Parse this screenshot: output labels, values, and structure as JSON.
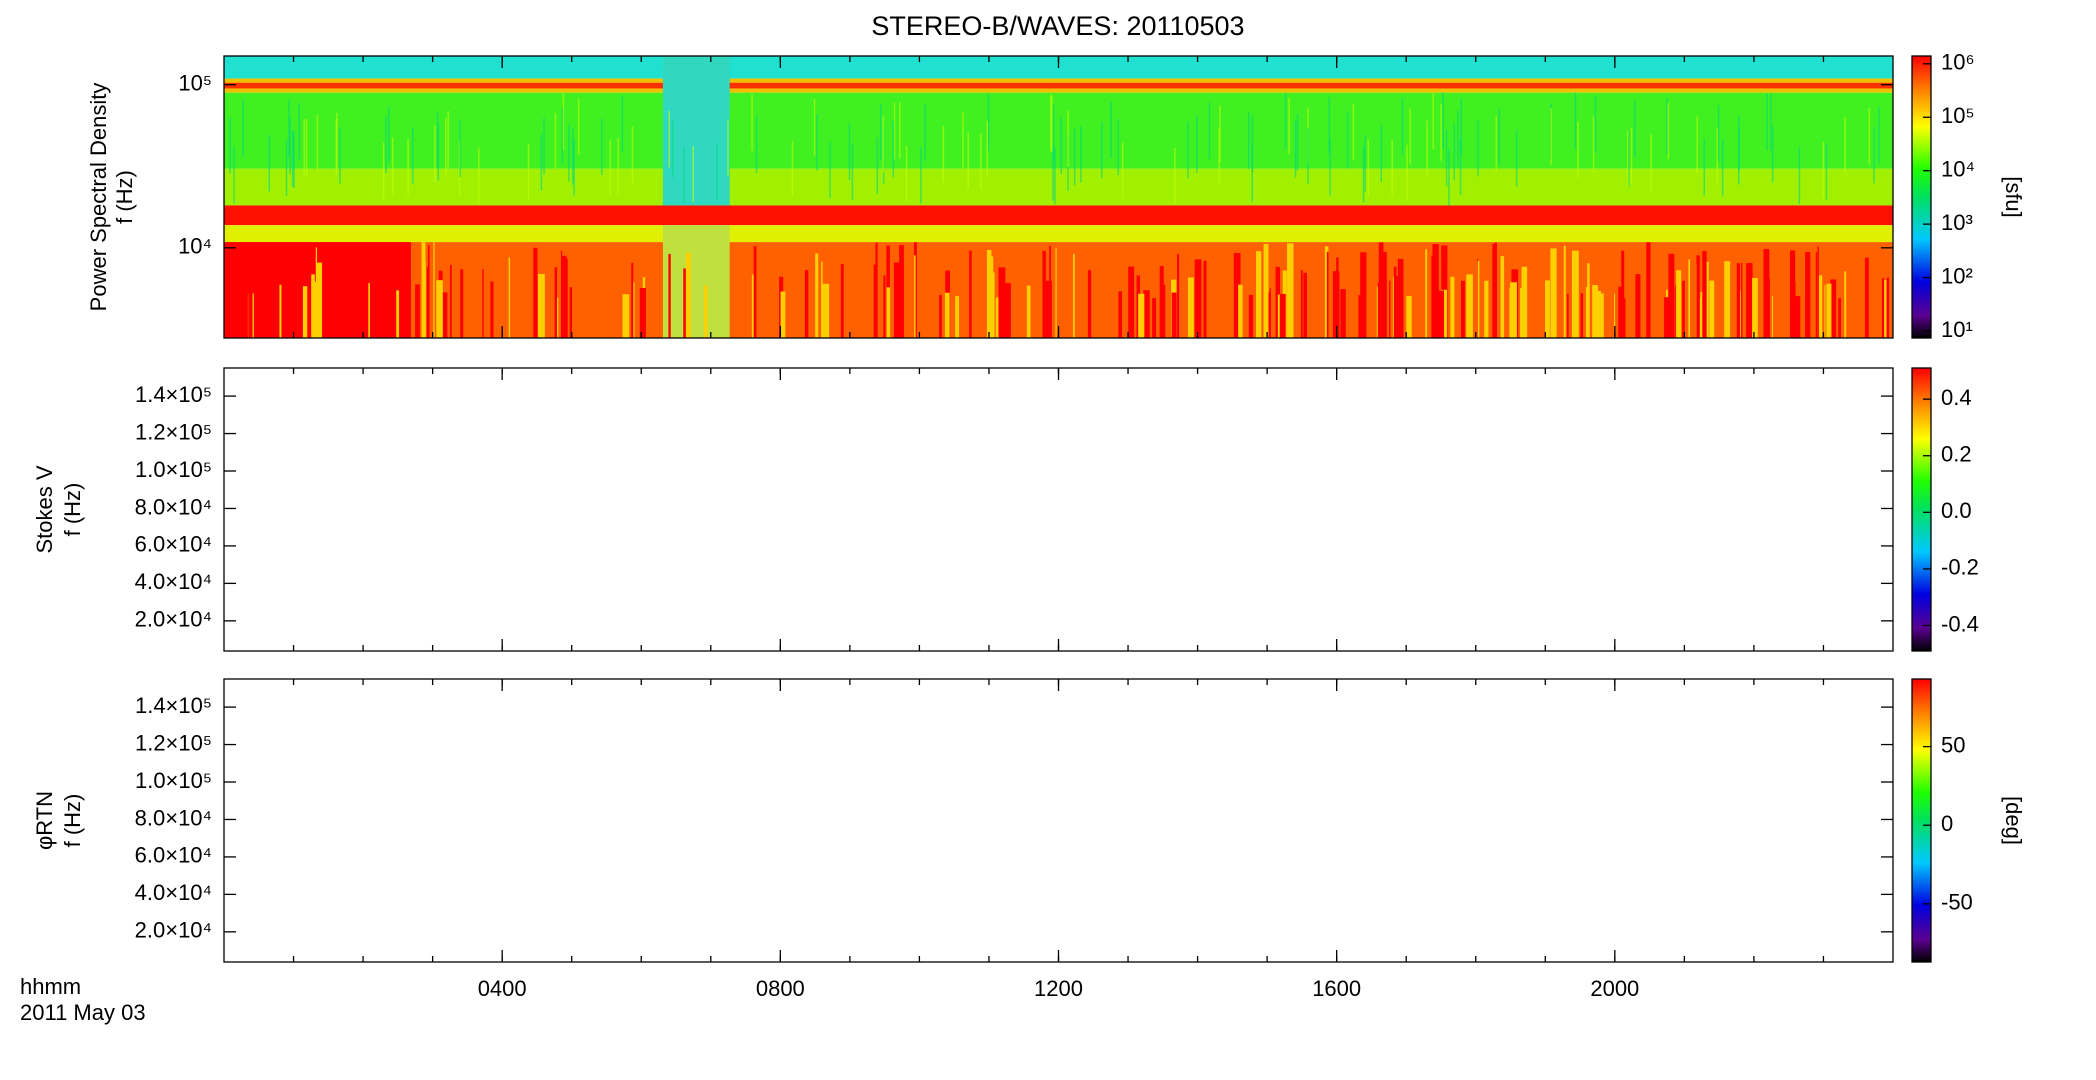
{
  "title": "STEREO-B/WAVES: 20110503",
  "time_axis": {
    "label": "hhmm",
    "date": "2011 May 03",
    "xlim": [
      0,
      24
    ],
    "xticks": [
      {
        "value": 4,
        "label": "0400"
      },
      {
        "value": 8,
        "label": "0800"
      },
      {
        "value": 12,
        "label": "1200"
      },
      {
        "value": 16,
        "label": "1600"
      },
      {
        "value": 20,
        "label": "2000"
      }
    ]
  },
  "chart_data": [
    {
      "type": "heatmap",
      "ylabel": [
        "Power Spectral Density",
        "f (Hz)"
      ],
      "ylog": true,
      "ylim": [
        2800,
        150000
      ],
      "yticks": [
        {
          "value": 10000,
          "label": "10⁴"
        },
        {
          "value": 100000,
          "label": "10⁵"
        }
      ],
      "colorbar": {
        "log": true,
        "clim": [
          7.4,
          1400000
        ],
        "label": "[sfu]",
        "ticks": [
          {
            "value": 10,
            "label": "10¹"
          },
          {
            "value": 100,
            "label": "10²"
          },
          {
            "value": 1000,
            "label": "10³"
          },
          {
            "value": 10000,
            "label": "10⁴"
          },
          {
            "value": 100000,
            "label": "10⁵"
          },
          {
            "value": 1000000,
            "label": "10⁶"
          }
        ]
      }
    },
    {
      "type": "heatmap",
      "ylabel": [
        "Stokes V",
        "f (Hz)"
      ],
      "ylog": false,
      "ylim": [
        3900,
        155000
      ],
      "yticks": [
        {
          "value": 20000,
          "label": "2.0×10⁴"
        },
        {
          "value": 40000,
          "label": "4.0×10⁴"
        },
        {
          "value": 60000,
          "label": "6.0×10⁴"
        },
        {
          "value": 80000,
          "label": "8.0×10⁴"
        },
        {
          "value": 100000,
          "label": "1.0×10⁵"
        },
        {
          "value": 120000,
          "label": "1.2×10⁵"
        },
        {
          "value": 140000,
          "label": "1.4×10⁵"
        }
      ],
      "colorbar": {
        "log": false,
        "clim": [
          -0.49,
          0.51
        ],
        "ticks": [
          -0.4,
          -0.2,
          {
            "value": 0,
            "label": "0.0"
          },
          0.2,
          0.4
        ]
      }
    },
    {
      "type": "heatmap",
      "ylabel": [
        "φRTN",
        "f (Hz)"
      ],
      "ylog": false,
      "ylim": [
        3900,
        155000
      ],
      "yticks": [
        {
          "value": 20000,
          "label": "2.0×10⁴"
        },
        {
          "value": 40000,
          "label": "4.0×10⁴"
        },
        {
          "value": 60000,
          "label": "6.0×10⁴"
        },
        {
          "value": 80000,
          "label": "8.0×10⁴"
        },
        {
          "value": 100000,
          "label": "1.0×10⁵"
        },
        {
          "value": 120000,
          "label": "1.2×10⁵"
        },
        {
          "value": 140000,
          "label": "1.4×10⁵"
        }
      ],
      "colorbar": {
        "log": false,
        "clim": [
          -87,
          93
        ],
        "label": "[deg]",
        "ticks": [
          -50,
          0,
          50
        ]
      }
    }
  ]
}
